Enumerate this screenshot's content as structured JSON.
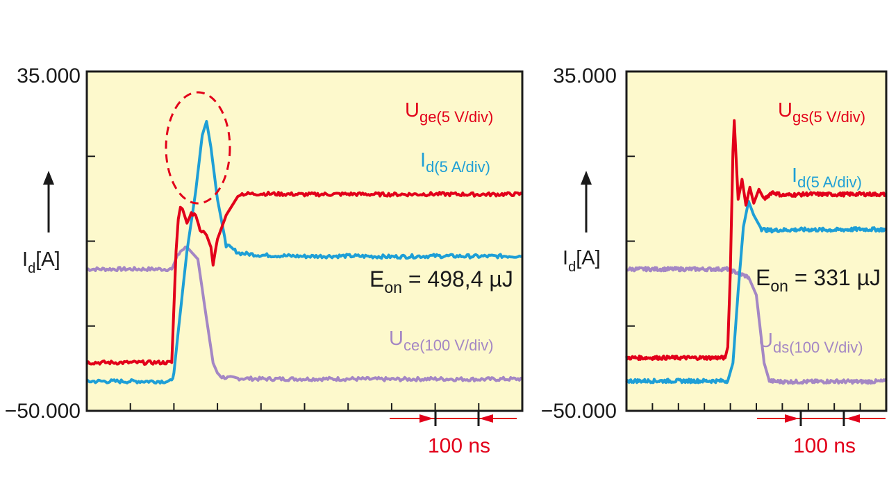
{
  "colors": {
    "background": "#fdf9cc",
    "ge": "#e2001a",
    "id": "#1e9fd6",
    "ce": "#a487c4",
    "ink": "#1a1a1a",
    "marker": "#e2001a"
  },
  "chart_data": [
    {
      "type": "line",
      "panel": "left",
      "ytick_top": "35.000",
      "ytick_bottom": "−50.000",
      "ylim": [
        -50000,
        35000
      ],
      "ylabel": {
        "main": "I",
        "sub": "d",
        "unit": "[A]"
      },
      "x_divisions": 10,
      "grid": false,
      "series": [
        {
          "name": "U",
          "sub": "ge(5 V/div)",
          "color_key": "ge",
          "x": [
            0,
            1.95,
            1.98,
            2.05,
            2.1,
            2.15,
            2.2,
            2.3,
            2.4,
            2.5,
            2.6,
            2.75,
            2.85,
            2.9,
            2.95,
            3.0,
            3.2,
            3.5,
            4,
            5,
            6,
            7,
            8,
            9,
            10
          ],
          "values": [
            -37900,
            -37900,
            -30000,
            -10000,
            -2000,
            1000,
            500,
            -3000,
            -500,
            -1000,
            -4500,
            -6000,
            -9000,
            -13500,
            -10000,
            -7000,
            -1000,
            4300,
            4400,
            4200,
            4300,
            4200,
            4300,
            4200,
            4300
          ]
        },
        {
          "name": "I",
          "sub": "d(5 A/div)",
          "color_key": "id",
          "x": [
            0,
            1.95,
            2.0,
            2.1,
            2.3,
            2.5,
            2.65,
            2.75,
            2.85,
            3.0,
            3.2,
            3.5,
            4,
            5,
            6,
            7,
            8,
            9,
            10
          ],
          "values": [
            -42600,
            -42600,
            -40500,
            -30000,
            -10000,
            5000,
            19000,
            22500,
            16000,
            3000,
            -8500,
            -10500,
            -11000,
            -11300,
            -11200,
            -11400,
            -11200,
            -11300,
            -11200
          ]
        },
        {
          "name": "U",
          "sub": "ce(100 V/div)",
          "color_key": "ce",
          "x": [
            0,
            1.95,
            2.05,
            2.15,
            2.3,
            2.55,
            2.75,
            2.9,
            3.0,
            3.1,
            3.3,
            4,
            5,
            6,
            7,
            8,
            9,
            10
          ],
          "values": [
            -14500,
            -14500,
            -12000,
            -10000,
            -9000,
            -12000,
            -27000,
            -38000,
            -40500,
            -41500,
            -41800,
            -42000,
            -42000,
            -42000,
            -42100,
            -42000,
            -42100,
            -42000
          ]
        }
      ],
      "energy": {
        "main": "E",
        "sub": "on",
        "value": " = 498,4 µJ"
      },
      "timebase": "100 ns"
    },
    {
      "type": "line",
      "panel": "right",
      "ytick_top": "35.000",
      "ytick_bottom": "−50.000",
      "ylim": [
        -50000,
        35000
      ],
      "ylabel": {
        "main": "I",
        "sub": "d",
        "unit": "[A]"
      },
      "x_divisions": 10,
      "grid": false,
      "series": [
        {
          "name": "U",
          "sub": "gs(5 V/div)",
          "color_key": "ge",
          "x": [
            0,
            3.8,
            3.9,
            4.0,
            4.1,
            4.15,
            4.3,
            4.45,
            4.6,
            4.75,
            4.9,
            5.1,
            5.3,
            5.6,
            6,
            7,
            8,
            9,
            10
          ],
          "values": [
            -36700,
            -36700,
            -34000,
            -15000,
            15000,
            22700,
            3000,
            8000,
            1500,
            6000,
            2000,
            5500,
            3000,
            4800,
            4000,
            4300,
            4200,
            4300,
            4200
          ]
        },
        {
          "name": "I",
          "sub": "d(5 A/div)",
          "color_key": "id",
          "x": [
            0,
            3.9,
            4.1,
            4.3,
            4.5,
            4.7,
            4.9,
            5.2,
            5.5,
            6,
            7,
            8,
            9,
            10
          ],
          "values": [
            -42500,
            -42500,
            -38000,
            -20000,
            -4000,
            2500,
            -1000,
            -4500,
            -4800,
            -4700,
            -4600,
            -4700,
            -4500,
            -4600
          ]
        },
        {
          "name": "U",
          "sub": "ds(100 V/div)",
          "color_key": "ce",
          "x": [
            0,
            3.9,
            4.1,
            4.3,
            4.5,
            4.7,
            5.0,
            5.3,
            5.5,
            5.7,
            6,
            7,
            8,
            9,
            10
          ],
          "values": [
            -14500,
            -14500,
            -15000,
            -15500,
            -16000,
            -16500,
            -21000,
            -38000,
            -42500,
            -42600,
            -42700,
            -42700,
            -42600,
            -42700,
            -42600
          ]
        }
      ],
      "energy": {
        "main": "E",
        "sub": "on",
        "value": " = 331 µJ"
      },
      "timebase": "100 ns"
    }
  ]
}
